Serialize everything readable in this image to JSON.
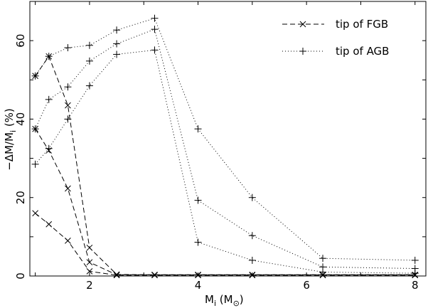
{
  "chart_data": {
    "type": "line",
    "xlabel": "M",
    "xlabel_sub": "i",
    "xlabel_unit_open": " (M",
    "xlabel_unit_sub": "⊙",
    "xlabel_unit_close": ")",
    "ylabel_prefix": "−ΔM/M",
    "ylabel_sub": "i",
    "ylabel_unit": " (%)",
    "xlim": [
      0.9,
      8.2
    ],
    "ylim": [
      0,
      70
    ],
    "xticks": [
      2,
      4,
      6,
      8
    ],
    "yticks": [
      0,
      20,
      40,
      60
    ],
    "legend_position": "top-right",
    "legend": [
      {
        "label": "tip of FGB",
        "style": "dashed",
        "marker": "x"
      },
      {
        "label": "tip of AGB",
        "style": "dotted",
        "marker": "+"
      }
    ],
    "series": [
      {
        "group": "FGB",
        "x": [
          1.0,
          1.25,
          1.6,
          2.0,
          2.5,
          3.2,
          4.0,
          5.0,
          6.3,
          8.0
        ],
        "y": [
          51.0,
          56.0,
          43.5,
          7.2,
          0.4,
          0.3,
          0.3,
          0.3,
          0.3,
          0.3
        ]
      },
      {
        "group": "FGB",
        "x": [
          1.0,
          1.25,
          1.6,
          2.0,
          2.5,
          3.2,
          4.0,
          5.0,
          6.3,
          8.0
        ],
        "y": [
          37.5,
          32.0,
          22.3,
          3.5,
          0.3,
          0.3,
          0.3,
          0.3,
          0.3,
          0.3
        ]
      },
      {
        "group": "FGB",
        "x": [
          1.0,
          1.25,
          1.6,
          2.0,
          2.5,
          3.2,
          4.0,
          5.0,
          6.3,
          8.0
        ],
        "y": [
          16.0,
          13.2,
          9.0,
          1.2,
          0.2,
          0.2,
          0.2,
          0.2,
          0.2,
          0.2
        ]
      },
      {
        "group": "AGB",
        "x": [
          1.0,
          1.25,
          1.6,
          2.0,
          2.5,
          3.2,
          4.0,
          5.0,
          6.3,
          8.0
        ],
        "y": [
          51.0,
          56.0,
          58.2,
          58.8,
          62.7,
          65.7,
          37.5,
          20.0,
          4.5,
          4.0
        ]
      },
      {
        "group": "AGB",
        "x": [
          1.0,
          1.25,
          1.6,
          2.0,
          2.5,
          3.2,
          4.0,
          5.0,
          6.3,
          8.0
        ],
        "y": [
          37.5,
          45.0,
          48.2,
          54.8,
          59.2,
          62.9,
          19.3,
          10.3,
          2.3,
          1.9
        ]
      },
      {
        "group": "AGB",
        "x": [
          1.0,
          1.25,
          1.6,
          2.0,
          2.5,
          3.2,
          4.0,
          5.0,
          6.3,
          8.0
        ],
        "y": [
          28.5,
          32.5,
          40.0,
          48.5,
          56.5,
          57.6,
          8.6,
          4.0,
          1.0,
          0.7
        ]
      }
    ]
  }
}
